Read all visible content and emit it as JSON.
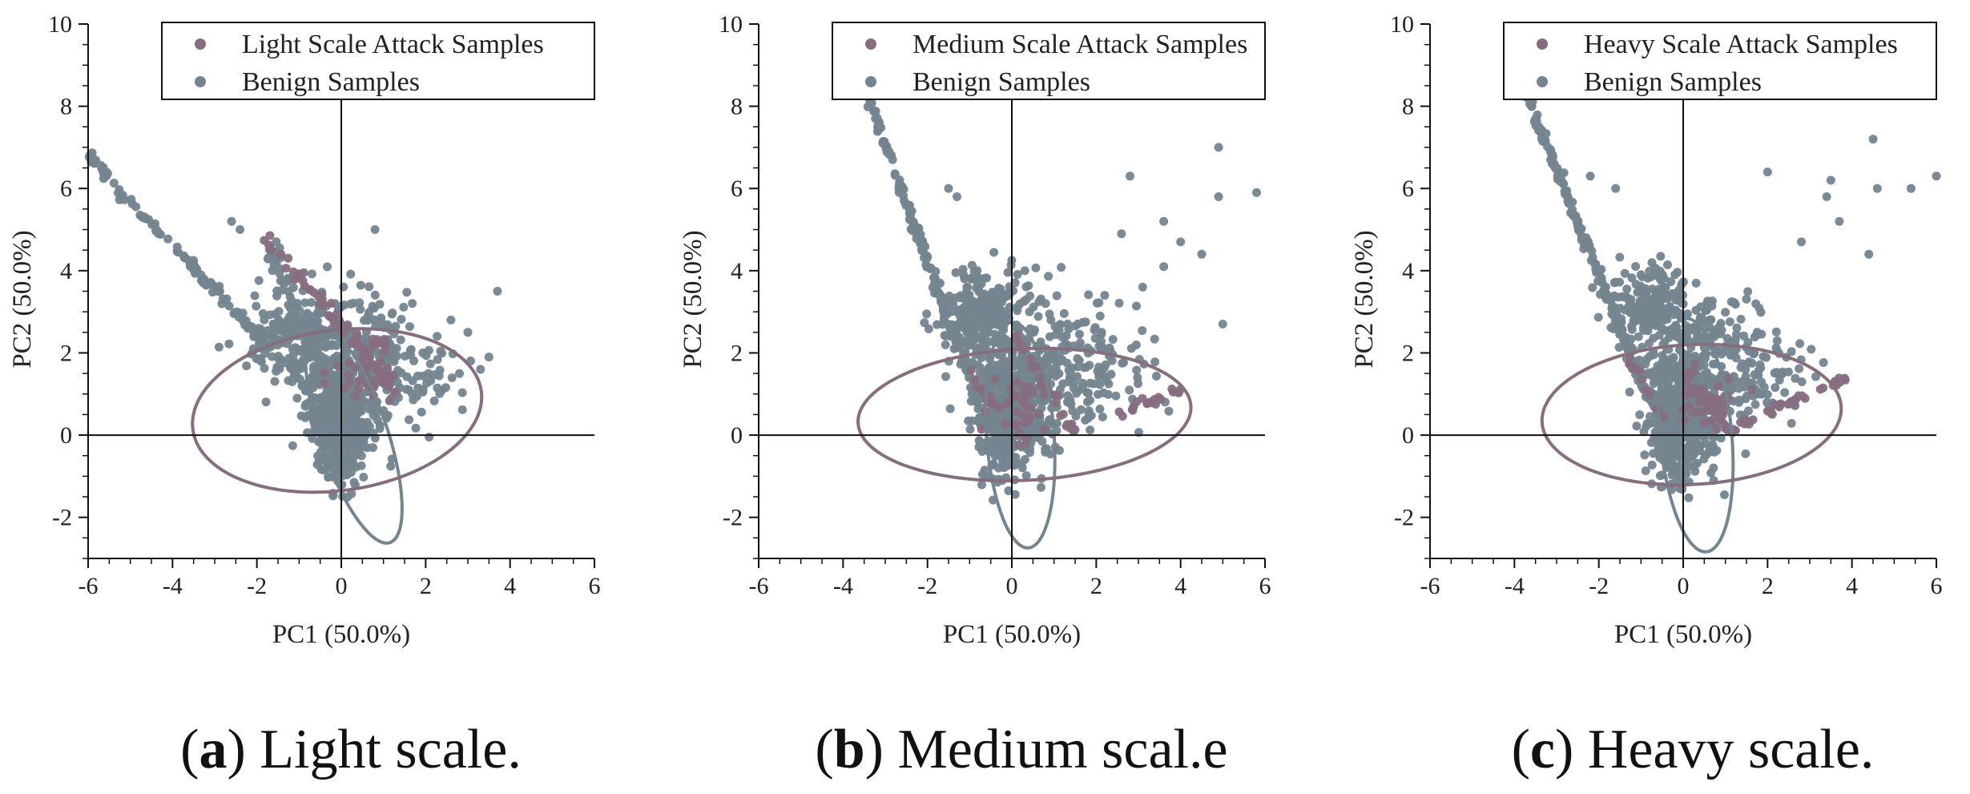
{
  "colors": {
    "attack": "#866e7f",
    "benign": "#74858f",
    "axis": "#111111",
    "text": "#222222"
  },
  "chart_data": [
    {
      "type": "scatter",
      "panel": "a",
      "caption_letter": "a",
      "caption_text": "Light scale.",
      "xlabel": "PC1 (50.0%)",
      "ylabel": "PC2 (50.0%)",
      "xlim": [
        -6,
        6
      ],
      "ylim": [
        -3,
        10
      ],
      "xticks": [
        -6,
        -4,
        -2,
        0,
        2,
        4,
        6
      ],
      "yticks": [
        -2,
        0,
        2,
        4,
        6,
        8,
        10
      ],
      "legend": [
        "Light Scale Attack Samples",
        "Benign Samples"
      ],
      "legend_position": "top-right",
      "series": [
        {
          "name": "Light Scale Attack Samples",
          "color_key": "attack",
          "trails": [
            {
              "from": [
                -1.8,
                4.8
              ],
              "to": [
                1.5,
                0.9
              ],
              "n": 60,
              "jitter": 0.1
            }
          ],
          "clusters": [
            {
              "cx": 0.6,
              "cy": 1.5,
              "sx": 0.4,
              "sy": 0.4,
              "n": 40
            }
          ],
          "ellipse": {
            "cx": -0.1,
            "cy": 0.6,
            "rx": 3.45,
            "ry": 1.95,
            "angle": 8
          }
        },
        {
          "name": "Benign Samples",
          "color_key": "benign",
          "trails": [
            {
              "from": [
                -6.0,
                6.8
              ],
              "to": [
                -0.5,
                0.8
              ],
              "n": 140,
              "jitter": 0.07
            },
            {
              "from": [
                -1.7,
                4.6
              ],
              "to": [
                0.2,
                0.2
              ],
              "n": 80,
              "jitter": 0.18
            }
          ],
          "clusters": [
            {
              "cx": 0.0,
              "cy": 0.5,
              "sx": 0.4,
              "sy": 0.6,
              "n": 420
            },
            {
              "cx": -1.0,
              "cy": 2.3,
              "sx": 0.6,
              "sy": 0.5,
              "n": 200
            },
            {
              "cx": 0.5,
              "cy": 2.0,
              "sx": 0.7,
              "sy": 0.8,
              "n": 160
            },
            {
              "cx": 1.6,
              "cy": 1.6,
              "sx": 0.6,
              "sy": 0.6,
              "n": 70
            },
            {
              "cx": 0.0,
              "cy": -0.6,
              "sx": 0.25,
              "sy": 0.4,
              "n": 70
            }
          ],
          "outliers": [
            [
              -2.6,
              5.2
            ],
            [
              0.8,
              5.0
            ],
            [
              3.7,
              3.5
            ],
            [
              2.6,
              2.8
            ],
            [
              3.0,
              2.5
            ],
            [
              3.5,
              1.9
            ],
            [
              3.3,
              1.6
            ],
            [
              2.8,
              1.5
            ],
            [
              -2.4,
              5.0
            ]
          ],
          "ellipse": {
            "cx": 0.3,
            "cy": 0.0,
            "rx": 2.75,
            "ry": 0.8,
            "angle": -72
          }
        }
      ]
    },
    {
      "type": "scatter",
      "panel": "b",
      "caption_letter": "b",
      "caption_text": "Medium scal.e",
      "xlabel": "PC1 (50.0%)",
      "ylabel": "PC2 (50.0%)",
      "xlim": [
        -6,
        6
      ],
      "ylim": [
        -3,
        10
      ],
      "xticks": [
        -6,
        -4,
        -2,
        0,
        2,
        4,
        6
      ],
      "yticks": [
        -2,
        0,
        2,
        4,
        6,
        8,
        10
      ],
      "legend": [
        "Medium Scale Attack Samples",
        "Benign Samples"
      ],
      "legend_position": "top-right",
      "series": [
        {
          "name": "Medium Scale Attack Samples",
          "color_key": "attack",
          "trails": [
            {
              "from": [
                0.0,
                2.5
              ],
              "to": [
                1.5,
                0.0
              ],
              "n": 30,
              "jitter": 0.08
            },
            {
              "from": [
                2.5,
                0.5
              ],
              "to": [
                4.0,
                1.1
              ],
              "n": 20,
              "jitter": 0.06
            },
            {
              "from": [
                -1.0,
                1.5
              ],
              "to": [
                -0.3,
                0.5
              ],
              "n": 15,
              "jitter": 0.08
            }
          ],
          "clusters": [
            {
              "cx": 0.2,
              "cy": 0.8,
              "sx": 0.35,
              "sy": 0.45,
              "n": 40
            }
          ],
          "ellipse": {
            "cx": 0.3,
            "cy": 0.5,
            "rx": 3.95,
            "ry": 1.6,
            "angle": 3
          }
        },
        {
          "name": "Benign Samples",
          "color_key": "benign",
          "trails": [
            {
              "from": [
                -3.5,
                8.5
              ],
              "to": [
                -0.8,
                0.8
              ],
              "n": 170,
              "jitter": 0.07
            }
          ],
          "clusters": [
            {
              "cx": 0.0,
              "cy": 0.7,
              "sx": 0.45,
              "sy": 0.7,
              "n": 450
            },
            {
              "cx": -0.7,
              "cy": 3.0,
              "sx": 0.45,
              "sy": 0.5,
              "n": 200
            },
            {
              "cx": 0.6,
              "cy": 2.2,
              "sx": 0.9,
              "sy": 0.9,
              "n": 170
            },
            {
              "cx": 1.8,
              "cy": 1.6,
              "sx": 0.8,
              "sy": 0.7,
              "n": 90
            },
            {
              "cx": -0.2,
              "cy": -0.6,
              "sx": 0.25,
              "sy": 0.4,
              "n": 60
            }
          ],
          "outliers": [
            [
              -1.5,
              6.0
            ],
            [
              -1.3,
              5.8
            ],
            [
              2.8,
              6.3
            ],
            [
              4.9,
              7.0
            ],
            [
              5.8,
              5.9
            ],
            [
              4.9,
              5.8
            ],
            [
              3.6,
              5.2
            ],
            [
              2.6,
              4.9
            ],
            [
              4.5,
              4.4
            ],
            [
              3.6,
              4.1
            ],
            [
              5.0,
              2.7
            ],
            [
              3.1,
              3.6
            ],
            [
              4.0,
              4.7
            ],
            [
              2.2,
              3.4
            ]
          ],
          "ellipse": {
            "cx": 0.2,
            "cy": 0.0,
            "rx": 2.75,
            "ry": 0.8,
            "angle": -86
          }
        }
      ]
    },
    {
      "type": "scatter",
      "panel": "c",
      "caption_letter": "c",
      "caption_text": "Heavy scale.",
      "xlabel": "PC1 (50.0%)",
      "ylabel": "PC2 (50.0%)",
      "xlim": [
        -6,
        6
      ],
      "ylim": [
        -3,
        10
      ],
      "xticks": [
        -6,
        -4,
        -2,
        0,
        2,
        4,
        6
      ],
      "yticks": [
        -2,
        0,
        2,
        4,
        6,
        8,
        10
      ],
      "legend": [
        "Heavy Scale Attack Samples",
        "Benign Samples"
      ],
      "legend_position": "top-right",
      "series": [
        {
          "name": "Heavy Scale Attack Samples",
          "color_key": "attack",
          "trails": [
            {
              "from": [
                1.0,
                0.1
              ],
              "to": [
                3.9,
                1.4
              ],
              "n": 35,
              "jitter": 0.05
            },
            {
              "from": [
                0.0,
                1.5
              ],
              "to": [
                1.2,
                0.0
              ],
              "n": 25,
              "jitter": 0.08
            },
            {
              "from": [
                -1.3,
                1.8
              ],
              "to": [
                -0.5,
                0.5
              ],
              "n": 15,
              "jitter": 0.08
            }
          ],
          "clusters": [
            {
              "cx": 0.4,
              "cy": 0.6,
              "sx": 0.35,
              "sy": 0.4,
              "n": 35
            }
          ],
          "ellipse": {
            "cx": 0.2,
            "cy": 0.5,
            "rx": 3.55,
            "ry": 1.7,
            "angle": 3
          }
        },
        {
          "name": "Benign Samples",
          "color_key": "benign",
          "trails": [
            {
              "from": [
                -3.8,
                8.5
              ],
              "to": [
                -0.8,
                0.8
              ],
              "n": 170,
              "jitter": 0.07
            }
          ],
          "clusters": [
            {
              "cx": 0.0,
              "cy": 0.6,
              "sx": 0.45,
              "sy": 0.7,
              "n": 450
            },
            {
              "cx": -0.8,
              "cy": 3.1,
              "sx": 0.45,
              "sy": 0.45,
              "n": 200
            },
            {
              "cx": 0.5,
              "cy": 2.0,
              "sx": 0.8,
              "sy": 0.9,
              "n": 160
            },
            {
              "cx": 1.6,
              "cy": 1.5,
              "sx": 0.7,
              "sy": 0.6,
              "n": 80
            },
            {
              "cx": -0.2,
              "cy": -0.6,
              "sx": 0.25,
              "sy": 0.4,
              "n": 60
            }
          ],
          "outliers": [
            [
              -2.2,
              6.3
            ],
            [
              -1.6,
              6.0
            ],
            [
              2.0,
              6.4
            ],
            [
              4.5,
              7.2
            ],
            [
              5.4,
              6.0
            ],
            [
              4.6,
              6.0
            ],
            [
              3.5,
              6.2
            ],
            [
              3.4,
              5.8
            ],
            [
              4.4,
              4.4
            ],
            [
              3.7,
              5.2
            ],
            [
              2.8,
              4.7
            ],
            [
              6.0,
              6.3
            ]
          ],
          "ellipse": {
            "cx": 0.3,
            "cy": 0.0,
            "rx": 2.85,
            "ry": 0.85,
            "angle": -85
          }
        }
      ]
    }
  ]
}
